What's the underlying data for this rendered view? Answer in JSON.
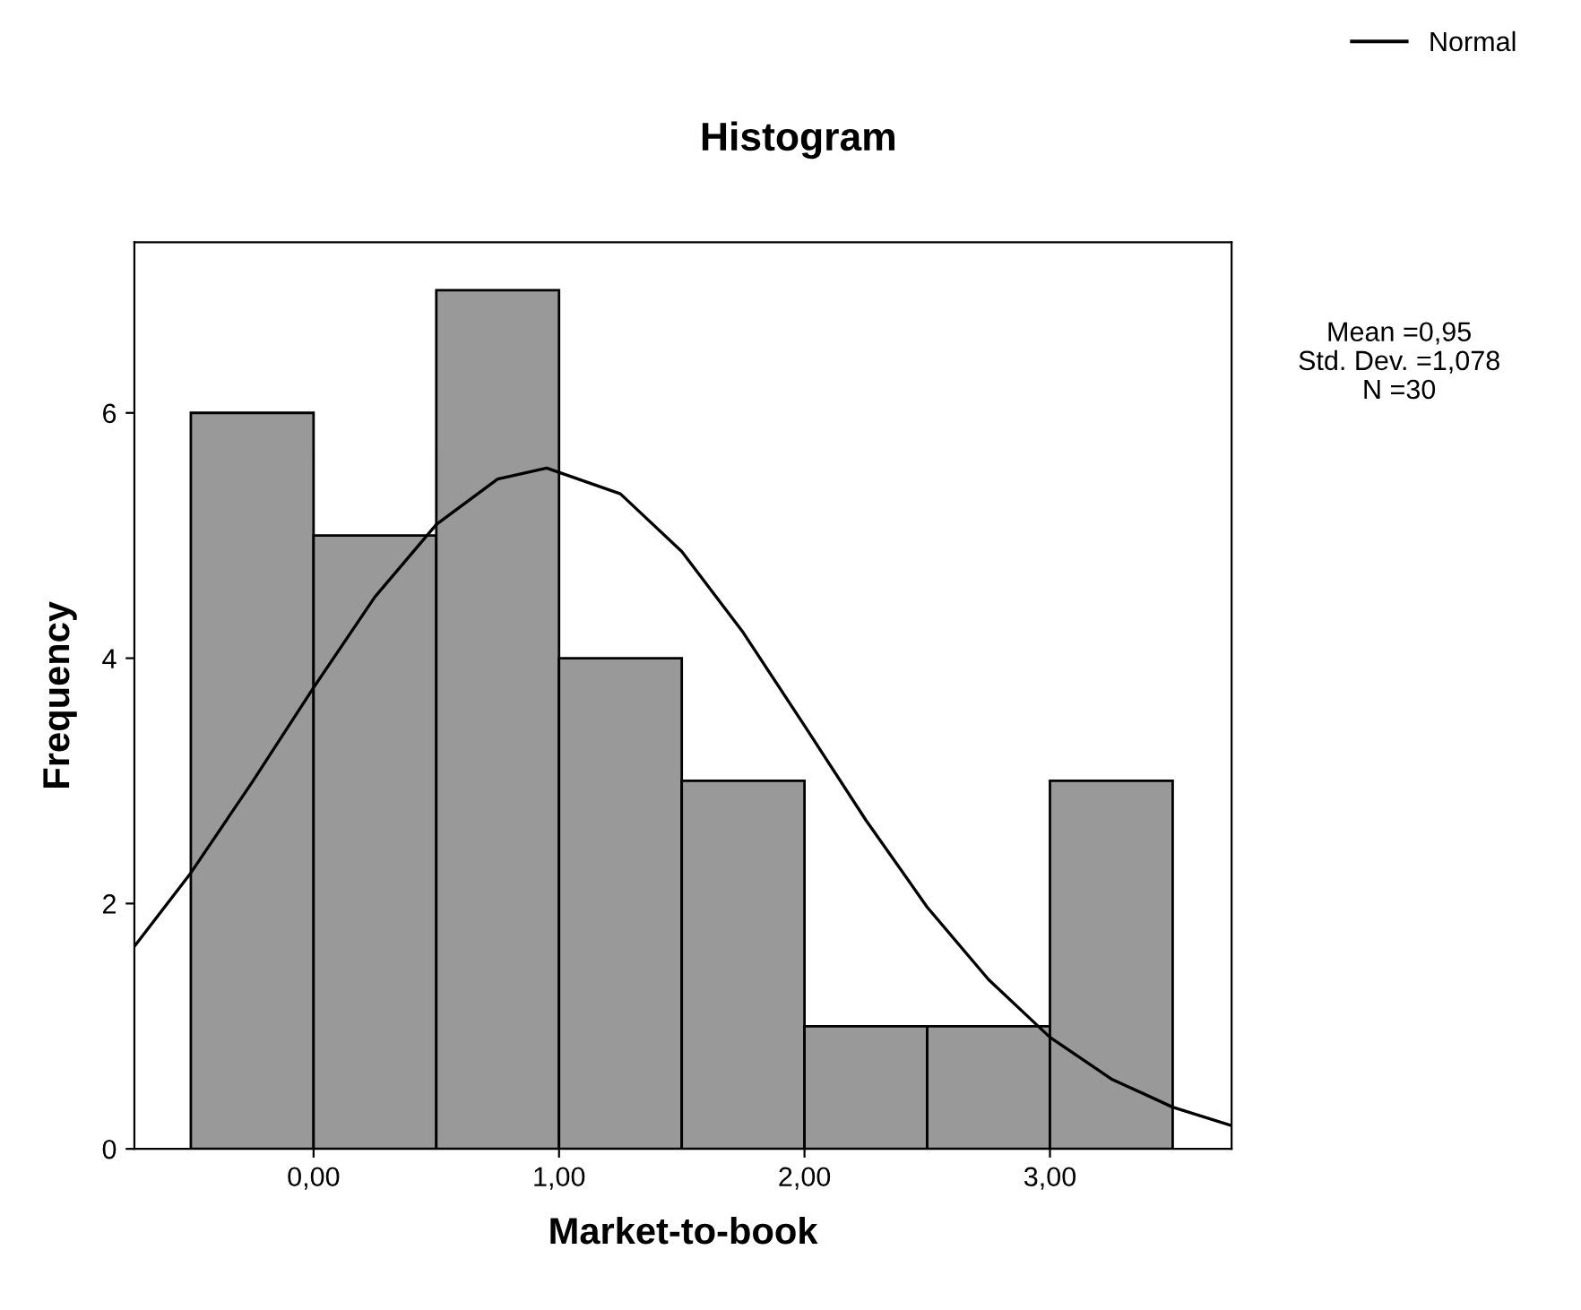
{
  "chart_data": {
    "type": "histogram",
    "title": "Histogram",
    "xlabel": "Market-to-book",
    "ylabel": "Frequency",
    "bins": [
      -0.5,
      0,
      0.5,
      1,
      1.5,
      2,
      2.5,
      3,
      3.5
    ],
    "values": [
      6,
      5,
      7,
      4,
      3,
      1,
      1,
      3
    ],
    "color": "#999999",
    "series": [
      {
        "name": "Normal",
        "type": "line",
        "color": "#000000",
        "x": [
          -0.73,
          -0.5,
          -0.25,
          0,
          0.25,
          0.5,
          0.75,
          0.95,
          1.25,
          1.5,
          1.75,
          2,
          2.25,
          2.5,
          2.75,
          3,
          3.25,
          3.5,
          3.74
        ],
        "values": [
          1.65,
          2.25,
          2.99,
          3.76,
          4.5,
          5.09,
          5.46,
          5.55,
          5.34,
          4.87,
          4.21,
          3.45,
          2.68,
          1.97,
          1.38,
          0.91,
          0.57,
          0.34,
          0.19
        ]
      }
    ],
    "xlim": [
      -0.73,
      3.74
    ],
    "xticks": [
      {
        "value": 0,
        "label": "0,00"
      },
      {
        "value": 1,
        "label": "1,00"
      },
      {
        "value": 2,
        "label": "2,00"
      },
      {
        "value": 3,
        "label": "3,00"
      }
    ],
    "ylim": [
      0,
      7.39
    ],
    "yticks": [
      0,
      2,
      4,
      6
    ],
    "annotations": [
      "Mean =0,95",
      "Std. Dev. =1,078",
      "N =30"
    ],
    "legend": "top right",
    "grid": false,
    "marker": "none",
    "line_style": "solid"
  }
}
